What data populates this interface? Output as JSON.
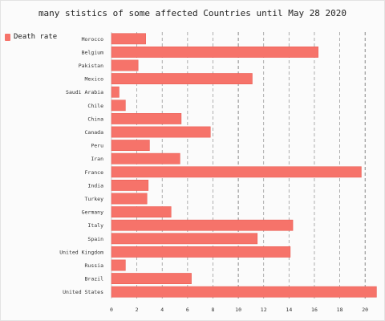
{
  "chart_data": {
    "type": "bar",
    "orientation": "horizontal",
    "title": "many stistics of some affected Countries until May 28 2020",
    "categories": [
      "Morocco",
      "Belgium",
      "Pakistan",
      "Mexico",
      "Saudi Arabia",
      "Chile",
      "China",
      "Canada",
      "Peru",
      "Iran",
      "France",
      "India",
      "Turkey",
      "Germany",
      "Italy",
      "Spain",
      "United Kingdom",
      "Russia",
      "Brazil",
      "United States"
    ],
    "series": [
      {
        "name": "Death rate",
        "values": [
          2.7,
          16.3,
          2.1,
          11.1,
          0.6,
          1.1,
          5.5,
          7.8,
          3.0,
          5.4,
          19.7,
          2.9,
          2.8,
          4.7,
          14.3,
          11.5,
          14.1,
          1.1,
          6.3,
          20.9
        ]
      }
    ],
    "xticks": [
      0,
      2,
      4,
      6,
      8,
      10,
      12,
      14,
      16,
      18,
      20
    ],
    "xlim": [
      0,
      21
    ],
    "grid": true,
    "legend_position": "top-left",
    "color": "#f6736a"
  }
}
